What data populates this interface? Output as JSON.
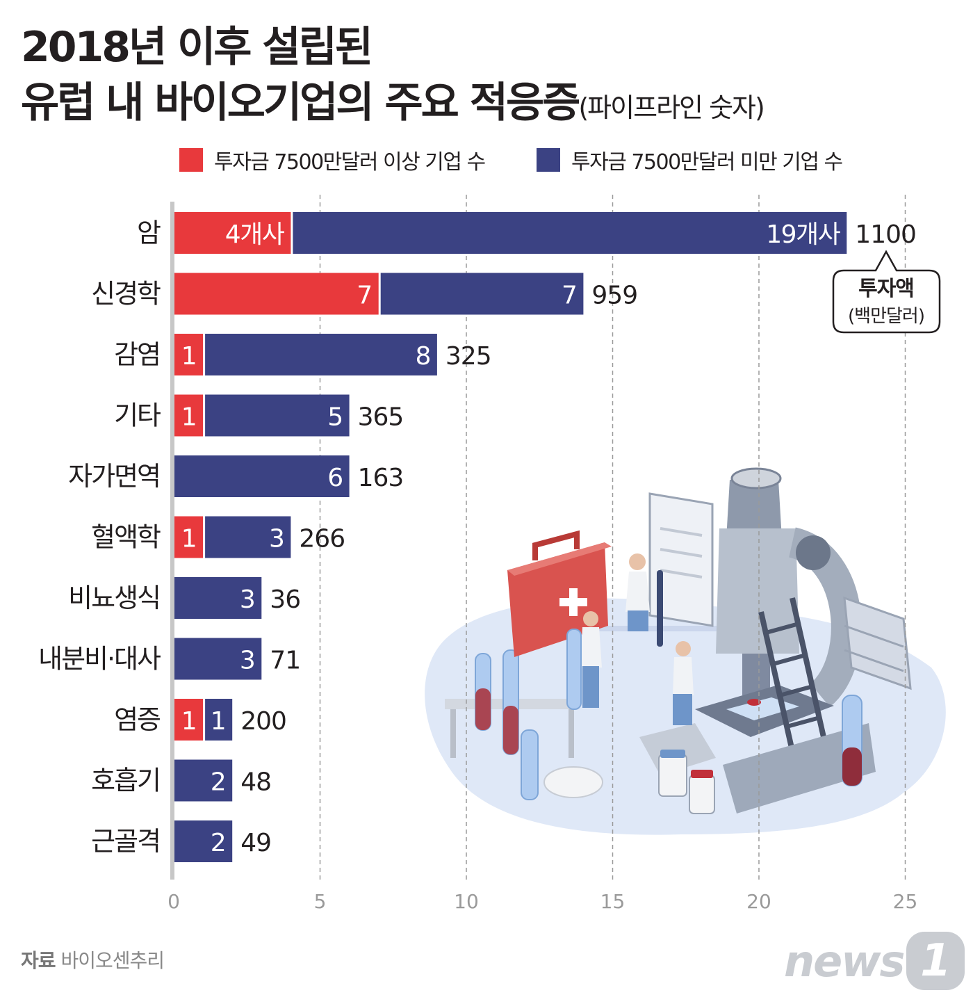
{
  "title": {
    "line1": "2018년 이후 설립된",
    "line2_main": "유럽 내 바이오기업의 주요 적응증",
    "line2_sub": "(파이프라인 숫자)"
  },
  "legend": {
    "above": "투자금 7500만달러 이상 기업 수",
    "below": "투자금 7500만달러 미만 기업 수"
  },
  "callout": {
    "title": "투자액",
    "unit": "(백만달러)"
  },
  "source": {
    "label": "자료",
    "text": "바이오센추리"
  },
  "logo": {
    "text": "news",
    "badge": "1"
  },
  "colors": {
    "above": "#e8393c",
    "below": "#3b4283"
  },
  "chart_data": {
    "type": "bar",
    "orientation": "horizontal",
    "stacked": true,
    "categories": [
      "암",
      "신경학",
      "감염",
      "기타",
      "자가면역",
      "혈액학",
      "비뇨생식",
      "내분비·대사",
      "염증",
      "호흡기",
      "근골격"
    ],
    "series": [
      {
        "name": "투자금 7500만달러 이상 기업 수",
        "values": [
          4,
          7,
          1,
          1,
          0,
          1,
          0,
          0,
          1,
          0,
          0
        ]
      },
      {
        "name": "투자금 7500만달러 미만 기업 수",
        "values": [
          19,
          7,
          8,
          5,
          6,
          3,
          3,
          3,
          1,
          2,
          2
        ]
      }
    ],
    "segment_labels": {
      "above": [
        "4개사",
        "7",
        "1",
        "1",
        "",
        "1",
        "",
        "",
        "1",
        "",
        ""
      ],
      "below": [
        "19개사",
        "7",
        "8",
        "5",
        "6",
        "3",
        "3",
        "3",
        "1",
        "2",
        "2"
      ]
    },
    "investment": [
      1100,
      959,
      325,
      365,
      163,
      266,
      36,
      71,
      200,
      48,
      49
    ],
    "xticks": [
      0,
      5,
      10,
      15,
      20,
      25
    ],
    "xlim": [
      0,
      25
    ],
    "grid": "vertical dashed"
  }
}
